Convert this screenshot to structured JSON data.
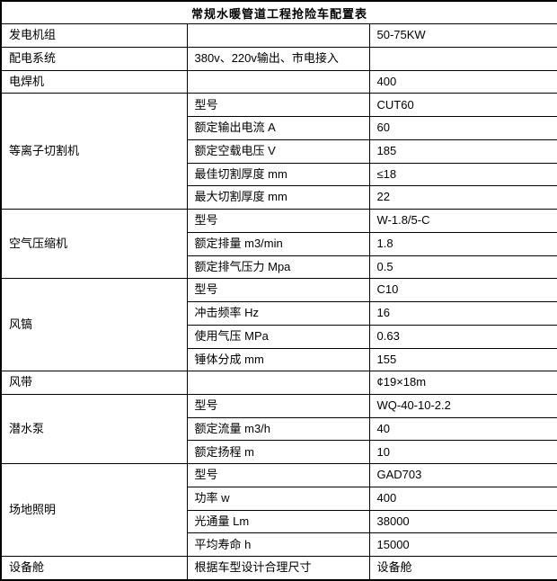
{
  "title": "常规水暖管道工程抢险车配置表",
  "colors": {
    "border": "#000000",
    "background": "#ffffff",
    "text": "#000000"
  },
  "table": {
    "groups": [
      {
        "label": "发电机组",
        "rows": [
          {
            "param": "",
            "value": "50-75KW"
          }
        ]
      },
      {
        "label": "配电系统",
        "rows": [
          {
            "param": "380v、220v输出、市电接入",
            "value": ""
          }
        ]
      },
      {
        "label": "电焊机",
        "rows": [
          {
            "param": "",
            "value": "400"
          }
        ]
      },
      {
        "label": "等离子切割机",
        "rows": [
          {
            "param": "型号",
            "value": "CUT60"
          },
          {
            "param": "额定输出电流 A",
            "value": "60"
          },
          {
            "param": "额定空载电压 V",
            "value": "185"
          },
          {
            "param": "最佳切割厚度 mm",
            "value": "≤18"
          },
          {
            "param": "最大切割厚度 mm",
            "value": "22"
          }
        ]
      },
      {
        "label": "空气压缩机",
        "rows": [
          {
            "param": "型号",
            "value": "W-1.8/5-C"
          },
          {
            "param": "额定排量 m3/min",
            "value": "1.8"
          },
          {
            "param": "额定排气压力 Mpa",
            "value": "0.5"
          }
        ]
      },
      {
        "label": "风镐",
        "rows": [
          {
            "param": "型号",
            "value": "C10"
          },
          {
            "param": "冲击频率 Hz",
            "value": "16"
          },
          {
            "param": "使用气压 MPa",
            "value": "0.63"
          },
          {
            "param": "锤体分成 mm",
            "value": "155"
          }
        ]
      },
      {
        "label": "风带",
        "rows": [
          {
            "param": "",
            "value": "¢19×18m"
          }
        ]
      },
      {
        "label": "潜水泵",
        "rows": [
          {
            "param": "型号",
            "value": "WQ-40-10-2.2"
          },
          {
            "param": "额定流量 m3/h",
            "value": "40"
          },
          {
            "param": "额定扬程 m",
            "value": "10"
          }
        ]
      },
      {
        "label": "场地照明",
        "rows": [
          {
            "param": "型号",
            "value": "GAD703"
          },
          {
            "param": "功率 w",
            "value": "400"
          },
          {
            "param": "光通量 Lm",
            "value": "38000"
          },
          {
            "param": "平均寿命 h",
            "value": "15000"
          }
        ]
      },
      {
        "label": "设备舱",
        "rows": [
          {
            "param": "根据车型设计合理尺寸",
            "value": "设备舱"
          }
        ]
      }
    ]
  }
}
